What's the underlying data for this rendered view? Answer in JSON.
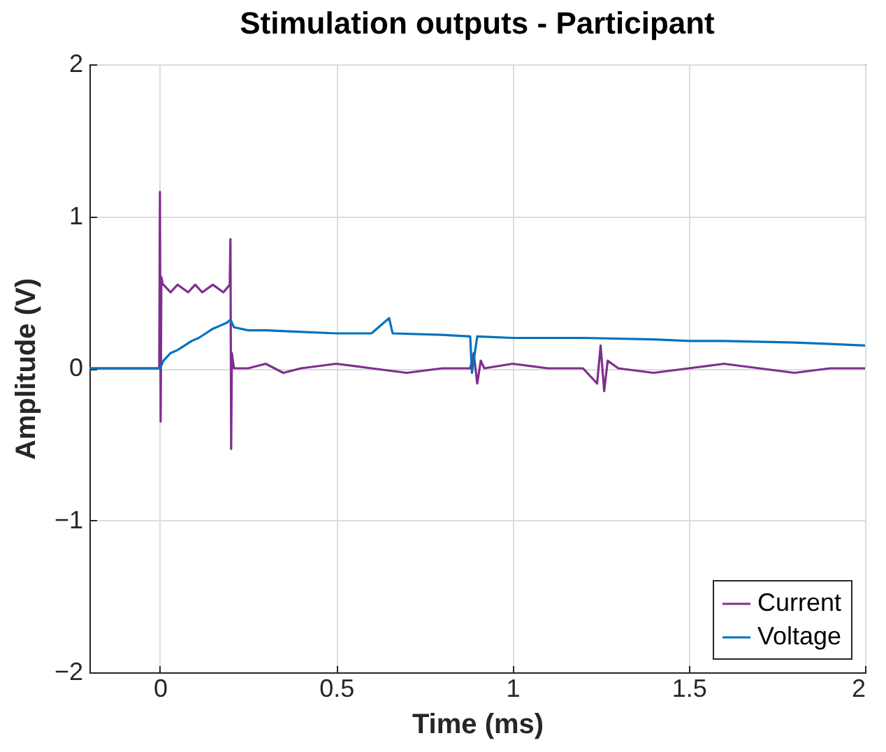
{
  "chart_data": {
    "type": "line",
    "title": "Stimulation outputs - Participant",
    "xlabel": "Time (ms)",
    "ylabel": "Amplitude (V)",
    "xlim": [
      -0.2,
      2
    ],
    "xticks": [
      0,
      0.5,
      1,
      1.5,
      2
    ],
    "ylim": [
      -2,
      2
    ],
    "yticks": [
      -2,
      -1,
      0,
      1,
      2
    ],
    "grid": true,
    "legend": "bottom right",
    "marker": "none",
    "line_style": "solid",
    "series": [
      {
        "name": "Current",
        "color": "#7e2f8e",
        "x": [
          -0.2,
          -0.1,
          -0.002,
          0,
          0.002,
          0.004,
          0.008,
          0.01,
          0.03,
          0.05,
          0.08,
          0.1,
          0.12,
          0.15,
          0.18,
          0.198,
          0.2,
          0.202,
          0.204,
          0.21,
          0.25,
          0.3,
          0.35,
          0.4,
          0.5,
          0.6,
          0.7,
          0.8,
          0.88,
          0.89,
          0.9,
          0.91,
          0.92,
          1.0,
          1.1,
          1.2,
          1.24,
          1.25,
          1.26,
          1.27,
          1.3,
          1.4,
          1.5,
          1.6,
          1.7,
          1.8,
          1.9,
          2.0
        ],
        "values": [
          0,
          0,
          0,
          1.16,
          -0.35,
          0.6,
          0.55,
          0.55,
          0.5,
          0.55,
          0.5,
          0.55,
          0.5,
          0.55,
          0.5,
          0.55,
          0.85,
          -0.53,
          0.1,
          0,
          0,
          0.03,
          -0.03,
          0,
          0.03,
          0,
          -0.03,
          0,
          0,
          0.1,
          -0.1,
          0.05,
          0,
          0.03,
          0,
          0,
          -0.1,
          0.15,
          -0.15,
          0.05,
          0,
          -0.03,
          0,
          0.03,
          0,
          -0.03,
          0,
          0
        ]
      },
      {
        "name": "Voltage",
        "color": "#0072bd",
        "x": [
          -0.2,
          -0.1,
          0,
          0.01,
          0.03,
          0.05,
          0.07,
          0.09,
          0.11,
          0.13,
          0.15,
          0.17,
          0.19,
          0.2,
          0.21,
          0.25,
          0.3,
          0.4,
          0.5,
          0.6,
          0.65,
          0.66,
          0.8,
          0.88,
          0.885,
          0.9,
          1.0,
          1.2,
          1.4,
          1.5,
          1.6,
          1.8,
          1.9,
          2.0
        ],
        "values": [
          0,
          0,
          0,
          0.05,
          0.1,
          0.12,
          0.15,
          0.18,
          0.2,
          0.23,
          0.26,
          0.28,
          0.3,
          0.32,
          0.27,
          0.25,
          0.25,
          0.24,
          0.23,
          0.23,
          0.33,
          0.23,
          0.22,
          0.21,
          -0.03,
          0.21,
          0.2,
          0.2,
          0.19,
          0.18,
          0.18,
          0.17,
          0.16,
          0.15
        ]
      }
    ]
  }
}
